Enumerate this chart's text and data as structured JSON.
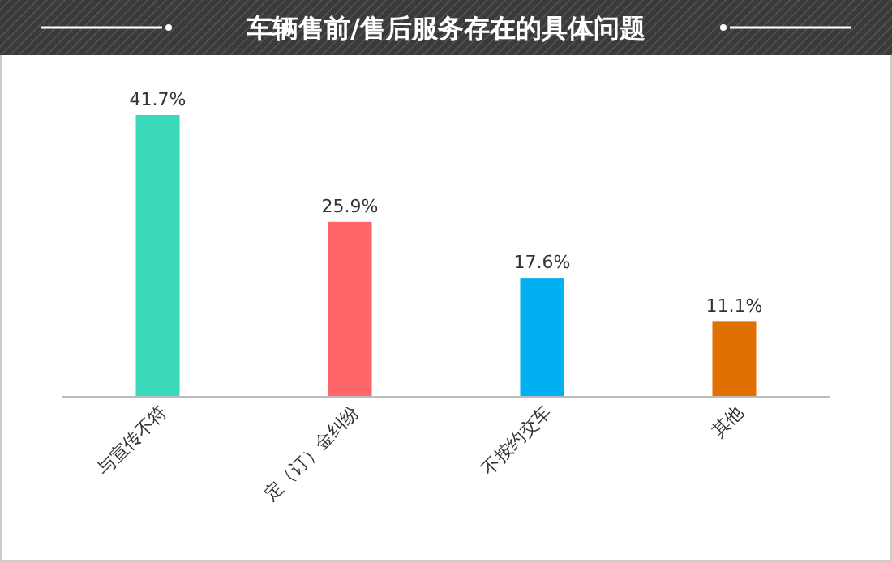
{
  "chart_data": {
    "type": "bar",
    "title": "车辆售前/售后服务存在的具体问题",
    "categories": [
      "与宣传不符",
      "定（订）金纠纷",
      "不按约交车",
      "其他"
    ],
    "values": [
      41.7,
      25.9,
      17.6,
      11.1
    ],
    "value_labels": [
      "41.7%",
      "25.9%",
      "17.6%",
      "11.1%"
    ],
    "colors": [
      "#3ad9b9",
      "#ff6669",
      "#00b0f0",
      "#e07000"
    ],
    "grid": false
  }
}
